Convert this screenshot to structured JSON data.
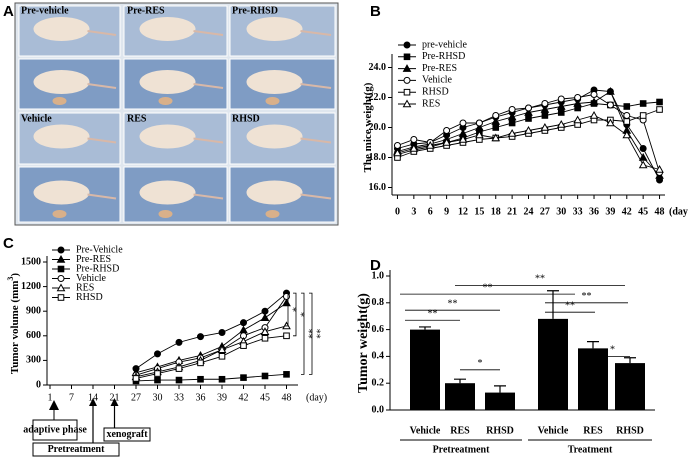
{
  "panel_a": {
    "letter": "A",
    "labels": [
      "Pre-vehicle",
      "Pre-RES",
      "Pre-RHSD",
      "Vehicle",
      "RES",
      "RHSD"
    ]
  },
  "chart_data": [
    {
      "panel": "B",
      "type": "line",
      "y_label": "The mice weight(g)",
      "x_label": "(day)",
      "x": [
        0,
        3,
        6,
        9,
        12,
        15,
        18,
        21,
        24,
        27,
        30,
        33,
        36,
        39,
        42,
        45,
        48
      ],
      "xlim": [
        -1,
        49
      ],
      "xticks": [
        0,
        3,
        6,
        9,
        12,
        15,
        18,
        21,
        24,
        27,
        30,
        33,
        36,
        39,
        42,
        45,
        48
      ],
      "ylim": [
        15.5,
        24.5
      ],
      "yticks": [
        {
          "value": 16,
          "label": "16.0"
        },
        {
          "value": 18,
          "label": "18.0"
        },
        {
          "value": 20,
          "label": "20.0"
        },
        {
          "value": 22,
          "label": "22.0"
        },
        {
          "value": 24,
          "label": "24.0"
        }
      ],
      "series": [
        {
          "name": "pre-vehicle",
          "color": "#000000",
          "marker": "circle",
          "filled": true,
          "values": [
            18.6,
            18.9,
            19.0,
            19.5,
            20.0,
            20.3,
            20.7,
            21.0,
            21.3,
            21.5,
            21.7,
            21.9,
            22.5,
            22.4,
            20.2,
            18.6,
            16.5
          ]
        },
        {
          "name": "Pre-RHSD",
          "color": "#000000",
          "marker": "square",
          "filled": true,
          "values": [
            18.2,
            18.5,
            18.7,
            19.0,
            19.3,
            19.7,
            20.0,
            20.3,
            20.6,
            20.8,
            21.0,
            21.3,
            21.6,
            21.5,
            21.4,
            21.6,
            21.7
          ]
        },
        {
          "name": "Pre-RES",
          "color": "#000000",
          "marker": "triangle",
          "filled": true,
          "values": [
            18.4,
            18.7,
            18.9,
            19.2,
            19.6,
            20.0,
            20.4,
            20.7,
            21.0,
            21.2,
            21.4,
            21.6,
            21.7,
            22.4,
            19.8,
            18.0,
            16.8
          ]
        },
        {
          "name": "Vehicle",
          "color": "#000000",
          "marker": "circle",
          "filled": false,
          "values": [
            18.8,
            19.2,
            19.0,
            19.8,
            20.3,
            20.3,
            20.8,
            21.2,
            21.3,
            21.6,
            21.9,
            22.0,
            22.2,
            21.5,
            20.8,
            20.5,
            17.0
          ]
        },
        {
          "name": "RHSD",
          "color": "#000000",
          "marker": "square",
          "filled": false,
          "values": [
            18.0,
            18.4,
            18.6,
            18.8,
            19.0,
            19.2,
            19.3,
            19.4,
            19.6,
            19.8,
            20.0,
            20.2,
            20.5,
            20.5,
            20.4,
            20.8,
            21.2
          ]
        },
        {
          "name": "RES",
          "color": "#000000",
          "marker": "triangle",
          "filled": false,
          "values": [
            18.3,
            18.6,
            18.8,
            19.0,
            19.2,
            19.5,
            19.3,
            19.6,
            19.8,
            20.0,
            20.2,
            20.5,
            20.8,
            20.3,
            19.5,
            17.5,
            17.2
          ]
        }
      ]
    },
    {
      "panel": "C",
      "type": "line",
      "y_label": "Tumor volume (mm",
      "y_label_sup": "3",
      "y_label_end": ")",
      "x_label": "(day)",
      "categories": [
        "1",
        "7",
        "14",
        "21",
        "27",
        "30",
        "33",
        "36",
        "39",
        "42",
        "45",
        "48"
      ],
      "ylim": [
        0,
        1500
      ],
      "yticks": [
        0,
        300,
        600,
        900,
        1200,
        1500
      ],
      "series": [
        {
          "name": "Pre-Vehicle",
          "color": "#000000",
          "marker": "circle",
          "filled": true,
          "values": [
            null,
            null,
            null,
            null,
            200,
            380,
            520,
            590,
            640,
            760,
            900,
            1120
          ]
        },
        {
          "name": "Pre-RES",
          "color": "#000000",
          "marker": "triangle",
          "filled": true,
          "values": [
            null,
            null,
            null,
            null,
            150,
            220,
            300,
            360,
            470,
            670,
            820,
            1000
          ]
        },
        {
          "name": "Pre-RHSD",
          "color": "#000000",
          "marker": "square",
          "filled": true,
          "values": [
            null,
            null,
            null,
            null,
            50,
            60,
            60,
            70,
            70,
            90,
            110,
            130
          ]
        },
        {
          "name": "Vehicle",
          "color": "#000000",
          "marker": "circle",
          "filled": false,
          "values": [
            null,
            null,
            null,
            null,
            120,
            200,
            280,
            330,
            430,
            600,
            700,
            1080
          ]
        },
        {
          "name": "RES",
          "color": "#000000",
          "marker": "triangle",
          "filled": false,
          "values": [
            null,
            null,
            null,
            null,
            100,
            160,
            220,
            300,
            430,
            530,
            650,
            720
          ]
        },
        {
          "name": "RHSD",
          "color": "#000000",
          "marker": "square",
          "filled": false,
          "values": [
            null,
            null,
            null,
            null,
            80,
            140,
            200,
            270,
            350,
            480,
            570,
            600
          ]
        }
      ],
      "significance": [
        "*",
        "*",
        "**",
        "**"
      ],
      "timeline": [
        "adaptive phase",
        "Pretreatment",
        "xenograft"
      ]
    },
    {
      "panel": "D",
      "type": "bar",
      "y_label": "Tumor weight(g)",
      "categories": [
        "Vehicle",
        "RES",
        "RHSD",
        "Vehicle",
        "RES",
        "RHSD"
      ],
      "groups": [
        "Pretreatment",
        "Treatment"
      ],
      "values": [
        0.6,
        0.2,
        0.13,
        0.68,
        0.46,
        0.35
      ],
      "errors": [
        0.02,
        0.03,
        0.05,
        0.21,
        0.05,
        0.04
      ],
      "color": "#000000",
      "ylim": [
        0,
        1.0
      ],
      "yticks": [
        {
          "value": 0,
          "label": "0.0"
        },
        {
          "value": 0.2,
          "label": "0.2"
        },
        {
          "value": 0.4,
          "label": "0.4"
        },
        {
          "value": 0.6,
          "label": "0.6"
        },
        {
          "value": 0.8,
          "label": "0.8"
        },
        {
          "value": 1.0,
          "label": "1.0"
        }
      ],
      "significance": [
        "**",
        "**",
        "**",
        "**",
        "**",
        "**",
        "*",
        "*"
      ]
    }
  ]
}
